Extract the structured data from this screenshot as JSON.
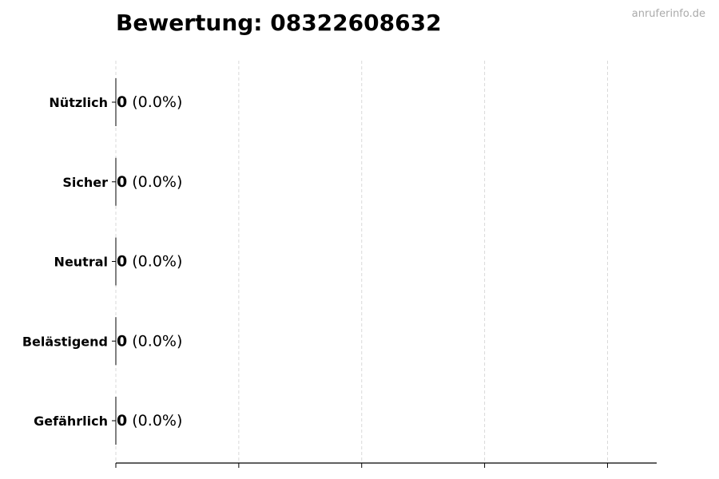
{
  "title": "Bewertung: 08322608632",
  "watermark": "anruferinfo.de",
  "chart_data": {
    "type": "bar",
    "orientation": "horizontal",
    "title": "Bewertung: 08322608632",
    "categories": [
      "Nützlich",
      "Sicher",
      "Neutral",
      "Belästigend",
      "Gefährlich"
    ],
    "values": [
      0,
      0,
      0,
      0,
      0
    ],
    "percent_labels": [
      "(0.0%)",
      "(0.0%)",
      "(0.0%)",
      "(0.0%)",
      "(0.0%)"
    ],
    "xlim": [
      0,
      4.4
    ],
    "xticks": [
      0,
      1,
      2,
      3,
      4
    ],
    "xtick_labels_shown": false,
    "grid": "vertical dashed",
    "bar_color": "#000000",
    "grid_color": "#d9d9d9"
  }
}
